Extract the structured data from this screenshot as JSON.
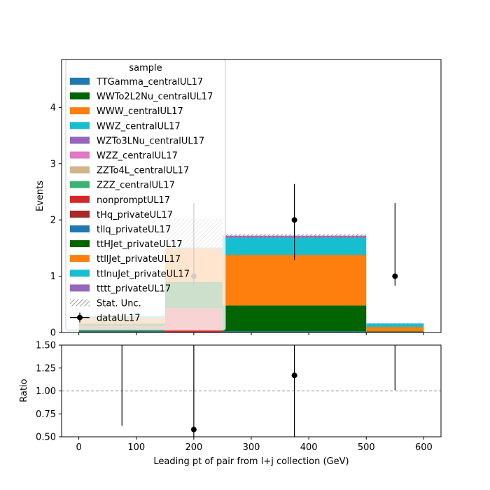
{
  "chart_data": {
    "type": "bar",
    "subtype": "stacked-histogram-with-ratio-panel",
    "bin_edges": [
      0,
      150,
      250,
      500,
      600
    ],
    "x_data": [
      75,
      200,
      375,
      550
    ],
    "main_panel": {
      "ylabel": "Events",
      "ylim": [
        0,
        4.85
      ],
      "yticks": [
        "0",
        "1",
        "2",
        "3",
        "4"
      ],
      "ytick_values": [
        0,
        1,
        2,
        3,
        4
      ],
      "stack": [
        {
          "name": "TTGamma_centralUL17",
          "color": "#1f77b4",
          "values": [
            0.02,
            0.0,
            0.02,
            0.01
          ]
        },
        {
          "name": "WWTo2L2Nu_centralUL17",
          "color": "#006400",
          "values": [
            0.05,
            0.0,
            0.46,
            0.01
          ]
        },
        {
          "name": "WWW_centralUL17",
          "color": "#ff7f0e",
          "values": [
            0.0,
            0.0,
            0.0,
            0.0
          ]
        },
        {
          "name": "WWZ_centralUL17",
          "color": "#17becf",
          "values": [
            0.0,
            0.0,
            0.0,
            0.0
          ]
        },
        {
          "name": "WZTo3LNu_centralUL17",
          "color": "#9467bd",
          "values": [
            0.0,
            0.0,
            0.0,
            0.0
          ]
        },
        {
          "name": "WZZ_centralUL17",
          "color": "#e377c2",
          "values": [
            0.0,
            0.0,
            0.0,
            0.0
          ]
        },
        {
          "name": "ZZTo4L_centralUL17",
          "color": "#d2b48c",
          "values": [
            0.0,
            0.0,
            0.0,
            0.0
          ]
        },
        {
          "name": "ZZZ_centralUL17",
          "color": "#3cb371",
          "values": [
            0.0,
            0.0,
            0.0,
            0.0
          ]
        },
        {
          "name": "nonpromptUL17",
          "color": "#d62728",
          "values": [
            0.04,
            0.43,
            0.0,
            0.0
          ]
        },
        {
          "name": "tHq_privateUL17",
          "color": "#a52a2a",
          "values": [
            0.0,
            0.0,
            0.0,
            0.0
          ]
        },
        {
          "name": "tllq_privateUL17",
          "color": "#1f77b4",
          "values": [
            0.0,
            0.0,
            0.0,
            0.0
          ]
        },
        {
          "name": "ttHJet_privateUL17",
          "color": "#006400",
          "values": [
            0.05,
            0.47,
            0.0,
            0.0
          ]
        },
        {
          "name": "ttllJet_privateUL17",
          "color": "#ff7f0e",
          "values": [
            0.1,
            0.6,
            0.9,
            0.08
          ]
        },
        {
          "name": "ttlnuJet_privateUL17",
          "color": "#17becf",
          "values": [
            0.03,
            0.01,
            0.3,
            0.06
          ]
        },
        {
          "name": "tttt_privateUL17",
          "color": "#9467bd",
          "values": [
            0.0,
            0.0,
            0.04,
            0.0
          ]
        }
      ],
      "stat_unc": [
        {
          "bin": 0,
          "low": 0.2,
          "high": 0.3
        },
        {
          "bin": 1,
          "low": 1.45,
          "high": 2.02
        },
        {
          "bin": 2,
          "low": 1.68,
          "high": 1.75
        },
        {
          "bin": 3,
          "low": 0.15,
          "high": 0.17
        }
      ],
      "data": {
        "name": "dataUL17",
        "values": [
          null,
          1,
          2,
          1
        ],
        "err_low": [
          null,
          0.83,
          1.29,
          0.83
        ],
        "err_high": [
          null,
          2.3,
          2.64,
          2.3
        ]
      }
    },
    "legend": {
      "title": "sample",
      "placement": "upper left",
      "stat_label": "Stat. Unc.",
      "data_label": "dataUL17"
    },
    "ratio_panel": {
      "ylabel": "Ratio",
      "ylim": [
        0.5,
        1.5
      ],
      "yticks": [
        "0.50",
        "0.75",
        "1.00",
        "1.25",
        "1.50"
      ],
      "ytick_values": [
        0.5,
        0.75,
        1.0,
        1.25,
        1.5
      ],
      "reference_line": 1.0,
      "points": [
        {
          "x": 75,
          "value": null,
          "err_low": 0.62,
          "err_high": 1.5
        },
        {
          "x": 200,
          "value": 0.58,
          "err_low": 0.5,
          "err_high": 1.5
        },
        {
          "x": 375,
          "value": 1.17,
          "err_low": 0.5,
          "err_high": 1.5
        },
        {
          "x": 550,
          "value": null,
          "err_low": 1.01,
          "err_high": 1.5
        }
      ]
    },
    "x_axis": {
      "xlabel": "Leading pt of pair from l+j collection (GeV)",
      "xlim": [
        -30,
        630
      ],
      "xticks": [
        "0",
        "100",
        "200",
        "300",
        "400",
        "500",
        "600"
      ],
      "xtick_values": [
        0,
        100,
        200,
        300,
        400,
        500,
        600
      ]
    }
  }
}
